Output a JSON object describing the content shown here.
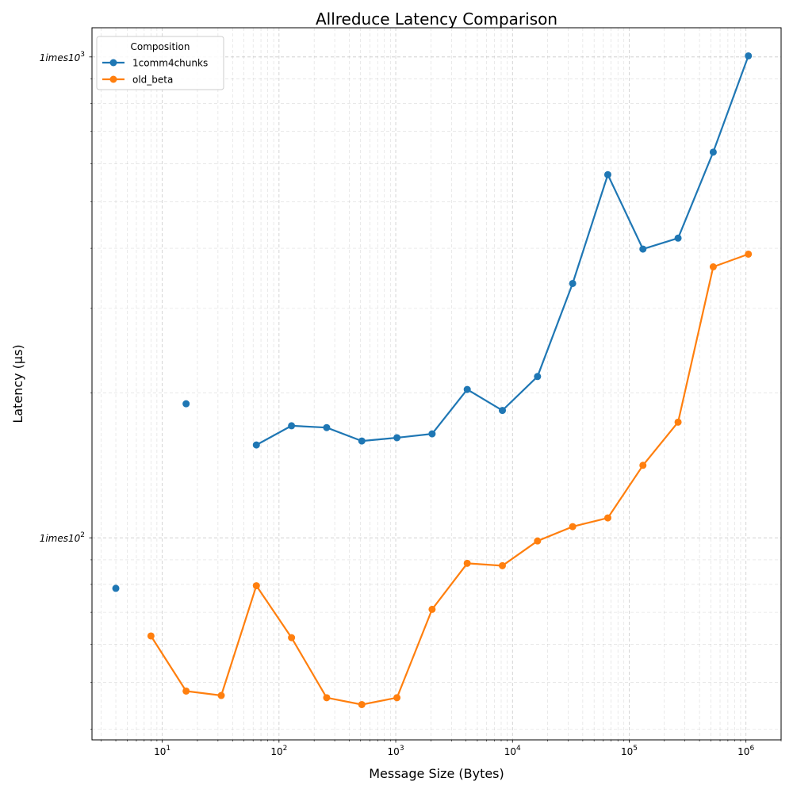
{
  "chart_data": {
    "type": "line",
    "title": "Allreduce Latency Comparison",
    "xlabel": "Message Size (Bytes)",
    "ylabel": "Latency (µs)",
    "xscale": "log",
    "yscale": "log",
    "xlim": [
      2.5,
      2000000
    ],
    "ylim": [
      38,
      1150
    ],
    "grid": "both",
    "x_ticks": [
      {
        "value": 10,
        "label": "10",
        "exp": "1"
      },
      {
        "value": 100,
        "label": "10",
        "exp": "2"
      },
      {
        "value": 1000,
        "label": "10",
        "exp": "3"
      },
      {
        "value": 10000,
        "label": "10",
        "exp": "4"
      },
      {
        "value": 100000,
        "label": "10",
        "exp": "5"
      },
      {
        "value": 1000000,
        "label": "10",
        "exp": "6"
      }
    ],
    "y_ticks": [
      {
        "value": 100,
        "label": "1imes10",
        "exp": "2"
      },
      {
        "value": 1000,
        "label": "1imes10",
        "exp": "3"
      }
    ],
    "legend": {
      "title": "Composition",
      "position": "top-left"
    },
    "series": [
      {
        "name": "1comm4chunks",
        "color": "#1f77b4",
        "points": [
          {
            "x": 4,
            "y": 78.5
          },
          {
            "x": 16,
            "y": 190
          },
          {
            "x": 64,
            "y": 156
          },
          {
            "x": 128,
            "y": 171
          },
          {
            "x": 256,
            "y": 169.5
          },
          {
            "x": 512,
            "y": 159
          },
          {
            "x": 1024,
            "y": 161.5
          },
          {
            "x": 2048,
            "y": 164.5
          },
          {
            "x": 4096,
            "y": 203.5
          },
          {
            "x": 8192,
            "y": 184
          },
          {
            "x": 16384,
            "y": 216.5
          },
          {
            "x": 32768,
            "y": 338
          },
          {
            "x": 65536,
            "y": 569
          },
          {
            "x": 131072,
            "y": 398.5
          },
          {
            "x": 262144,
            "y": 420
          },
          {
            "x": 524288,
            "y": 634
          },
          {
            "x": 1048576,
            "y": 1005
          }
        ],
        "segments": [
          [
            2,
            16
          ]
        ]
      },
      {
        "name": "old_beta",
        "color": "#ff7f0e",
        "points": [
          {
            "x": 8,
            "y": 62.5
          },
          {
            "x": 16,
            "y": 48
          },
          {
            "x": 32,
            "y": 47
          },
          {
            "x": 64,
            "y": 79.5
          },
          {
            "x": 128,
            "y": 62
          },
          {
            "x": 256,
            "y": 46.5
          },
          {
            "x": 512,
            "y": 45
          },
          {
            "x": 1024,
            "y": 46.5
          },
          {
            "x": 2048,
            "y": 71
          },
          {
            "x": 4096,
            "y": 88.5
          },
          {
            "x": 8192,
            "y": 87.5
          },
          {
            "x": 16384,
            "y": 98.5
          },
          {
            "x": 32768,
            "y": 105.5
          },
          {
            "x": 65536,
            "y": 110
          },
          {
            "x": 131072,
            "y": 141.5
          },
          {
            "x": 262144,
            "y": 174
          },
          {
            "x": 524288,
            "y": 366
          },
          {
            "x": 1048576,
            "y": 389
          }
        ],
        "segments": [
          [
            0,
            17
          ]
        ]
      }
    ]
  }
}
